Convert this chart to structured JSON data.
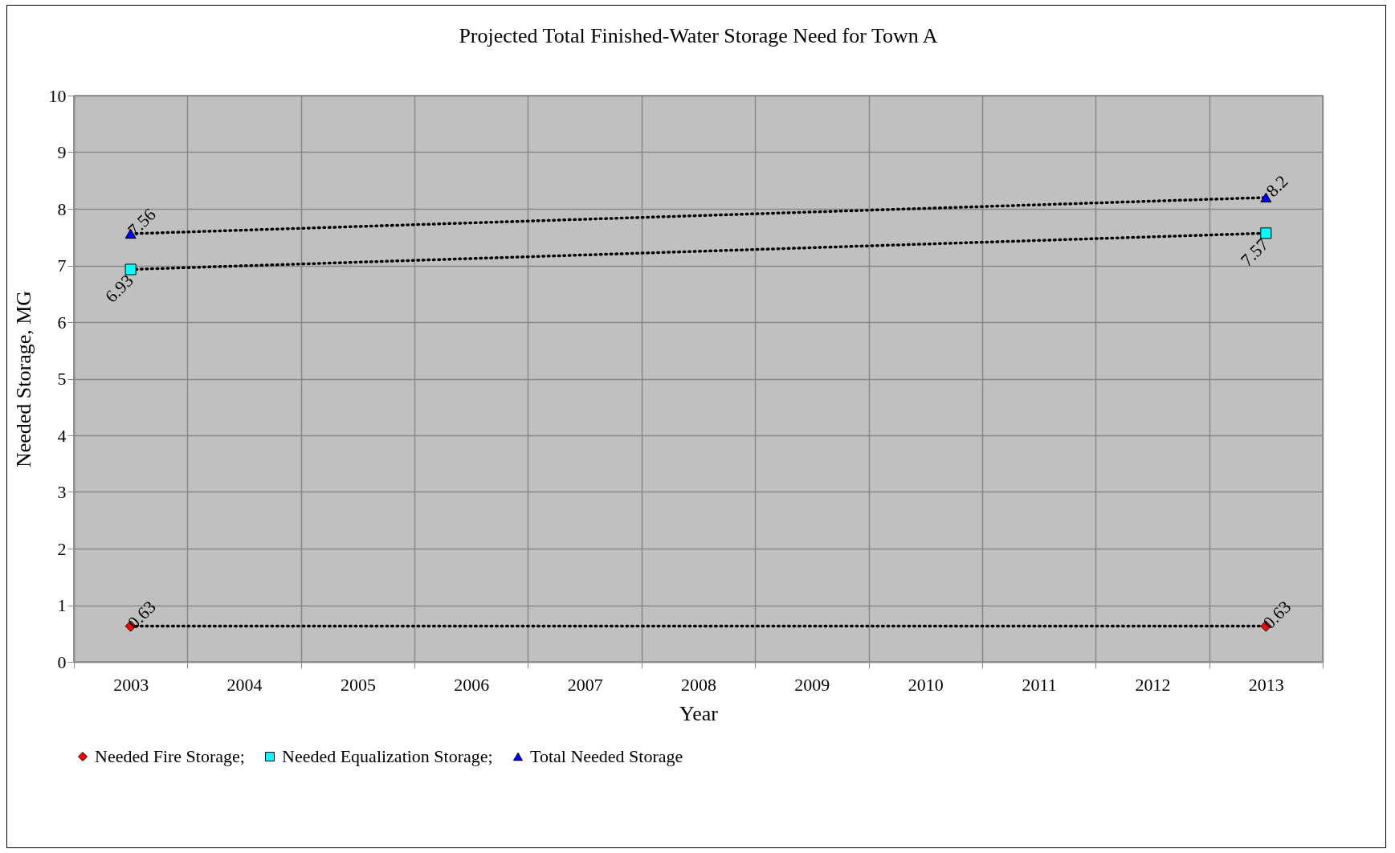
{
  "chart_data": {
    "type": "line",
    "title": "Projected Total Finished-Water Storage Need for Town A",
    "xlabel": "Year",
    "ylabel": "Needed Storage, MG",
    "categories": [
      "2003",
      "2004",
      "2005",
      "2006",
      "2007",
      "2008",
      "2009",
      "2010",
      "2011",
      "2012",
      "2013"
    ],
    "series": [
      {
        "name": "Needed Fire Storage;",
        "color": "#ff0000",
        "marker": "diamond",
        "values": [
          0.63,
          null,
          null,
          null,
          null,
          null,
          null,
          null,
          null,
          null,
          0.63
        ]
      },
      {
        "name": "Needed Equalization Storage;",
        "color": "#00ffff",
        "marker": "square",
        "values": [
          6.93,
          null,
          null,
          null,
          null,
          null,
          null,
          null,
          null,
          null,
          7.57
        ]
      },
      {
        "name": "Total Needed Storage",
        "color": "#0000ff",
        "marker": "triangle",
        "values": [
          7.56,
          null,
          null,
          null,
          null,
          null,
          null,
          null,
          null,
          null,
          8.2
        ]
      }
    ],
    "ylim": [
      0,
      10
    ],
    "yticks": [
      0,
      1,
      2,
      3,
      4,
      5,
      6,
      7,
      8,
      9,
      10
    ],
    "grid": true,
    "legend": "bottom",
    "line_style": "dotted",
    "data_labels": true
  }
}
